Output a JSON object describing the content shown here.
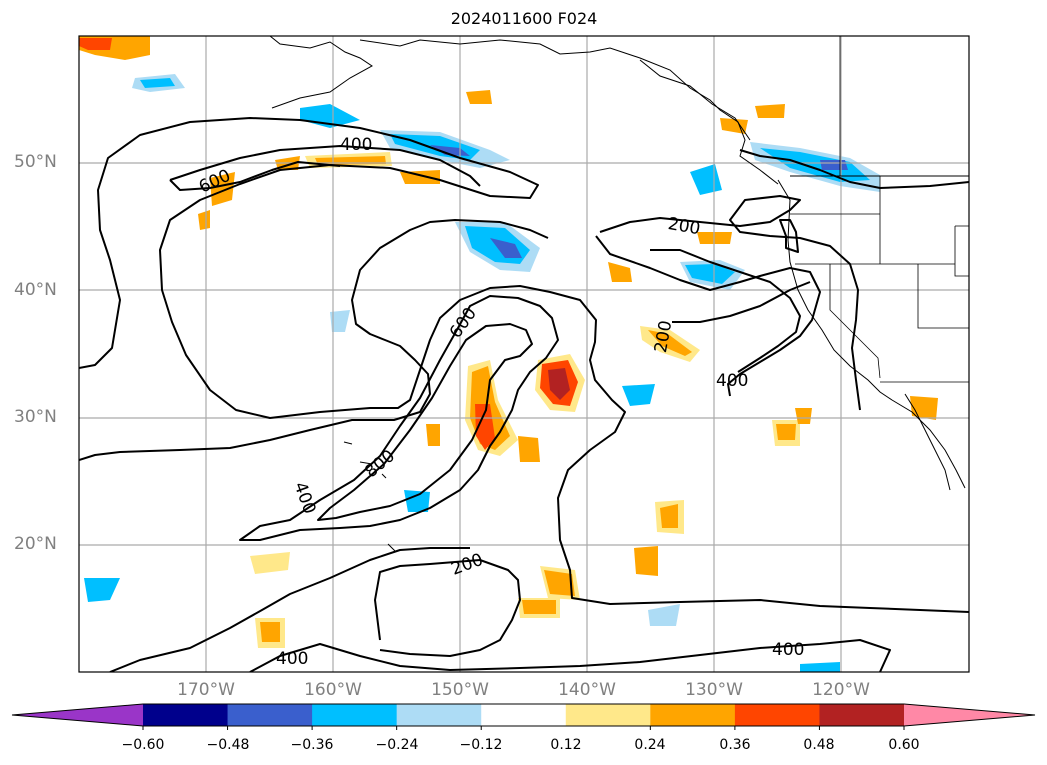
{
  "title": "2024011600 F024",
  "lat_labels": [
    "50°N",
    "40°N",
    "30°N",
    "20°N"
  ],
  "lon_labels": [
    "170°W",
    "160°W",
    "150°W",
    "140°W",
    "130°W",
    "120°W"
  ],
  "contour_labels": [
    "600",
    "400",
    "200",
    "600",
    "200",
    "800",
    "400",
    "200",
    "400",
    "400",
    "400"
  ],
  "colorbar": {
    "ticks": [
      "−0.60",
      "−0.48",
      "−0.36",
      "−0.24",
      "−0.12",
      "0.12",
      "0.24",
      "0.36",
      "0.48",
      "0.60"
    ],
    "bins": [
      {
        "min": null,
        "max": -0.6,
        "color": "#9a35c8"
      },
      {
        "min": -0.6,
        "max": -0.48,
        "color": "#00008c"
      },
      {
        "min": -0.48,
        "max": -0.36,
        "color": "#3a5fcd"
      },
      {
        "min": -0.36,
        "max": -0.24,
        "color": "#00bfff"
      },
      {
        "min": -0.24,
        "max": -0.12,
        "color": "#addcf5"
      },
      {
        "min": -0.12,
        "max": 0.12,
        "color": "#ffffff"
      },
      {
        "min": 0.12,
        "max": 0.24,
        "color": "#ffe88a"
      },
      {
        "min": 0.24,
        "max": 0.36,
        "color": "#ffa500"
      },
      {
        "min": 0.36,
        "max": 0.48,
        "color": "#ff4500"
      },
      {
        "min": 0.48,
        "max": 0.6,
        "color": "#b22222"
      },
      {
        "min": 0.6,
        "max": null,
        "color": "#ff88a6"
      }
    ]
  },
  "colors": {
    "contour": "#000000",
    "grid": "#aaaaaa",
    "axis_label": "#808080"
  }
}
